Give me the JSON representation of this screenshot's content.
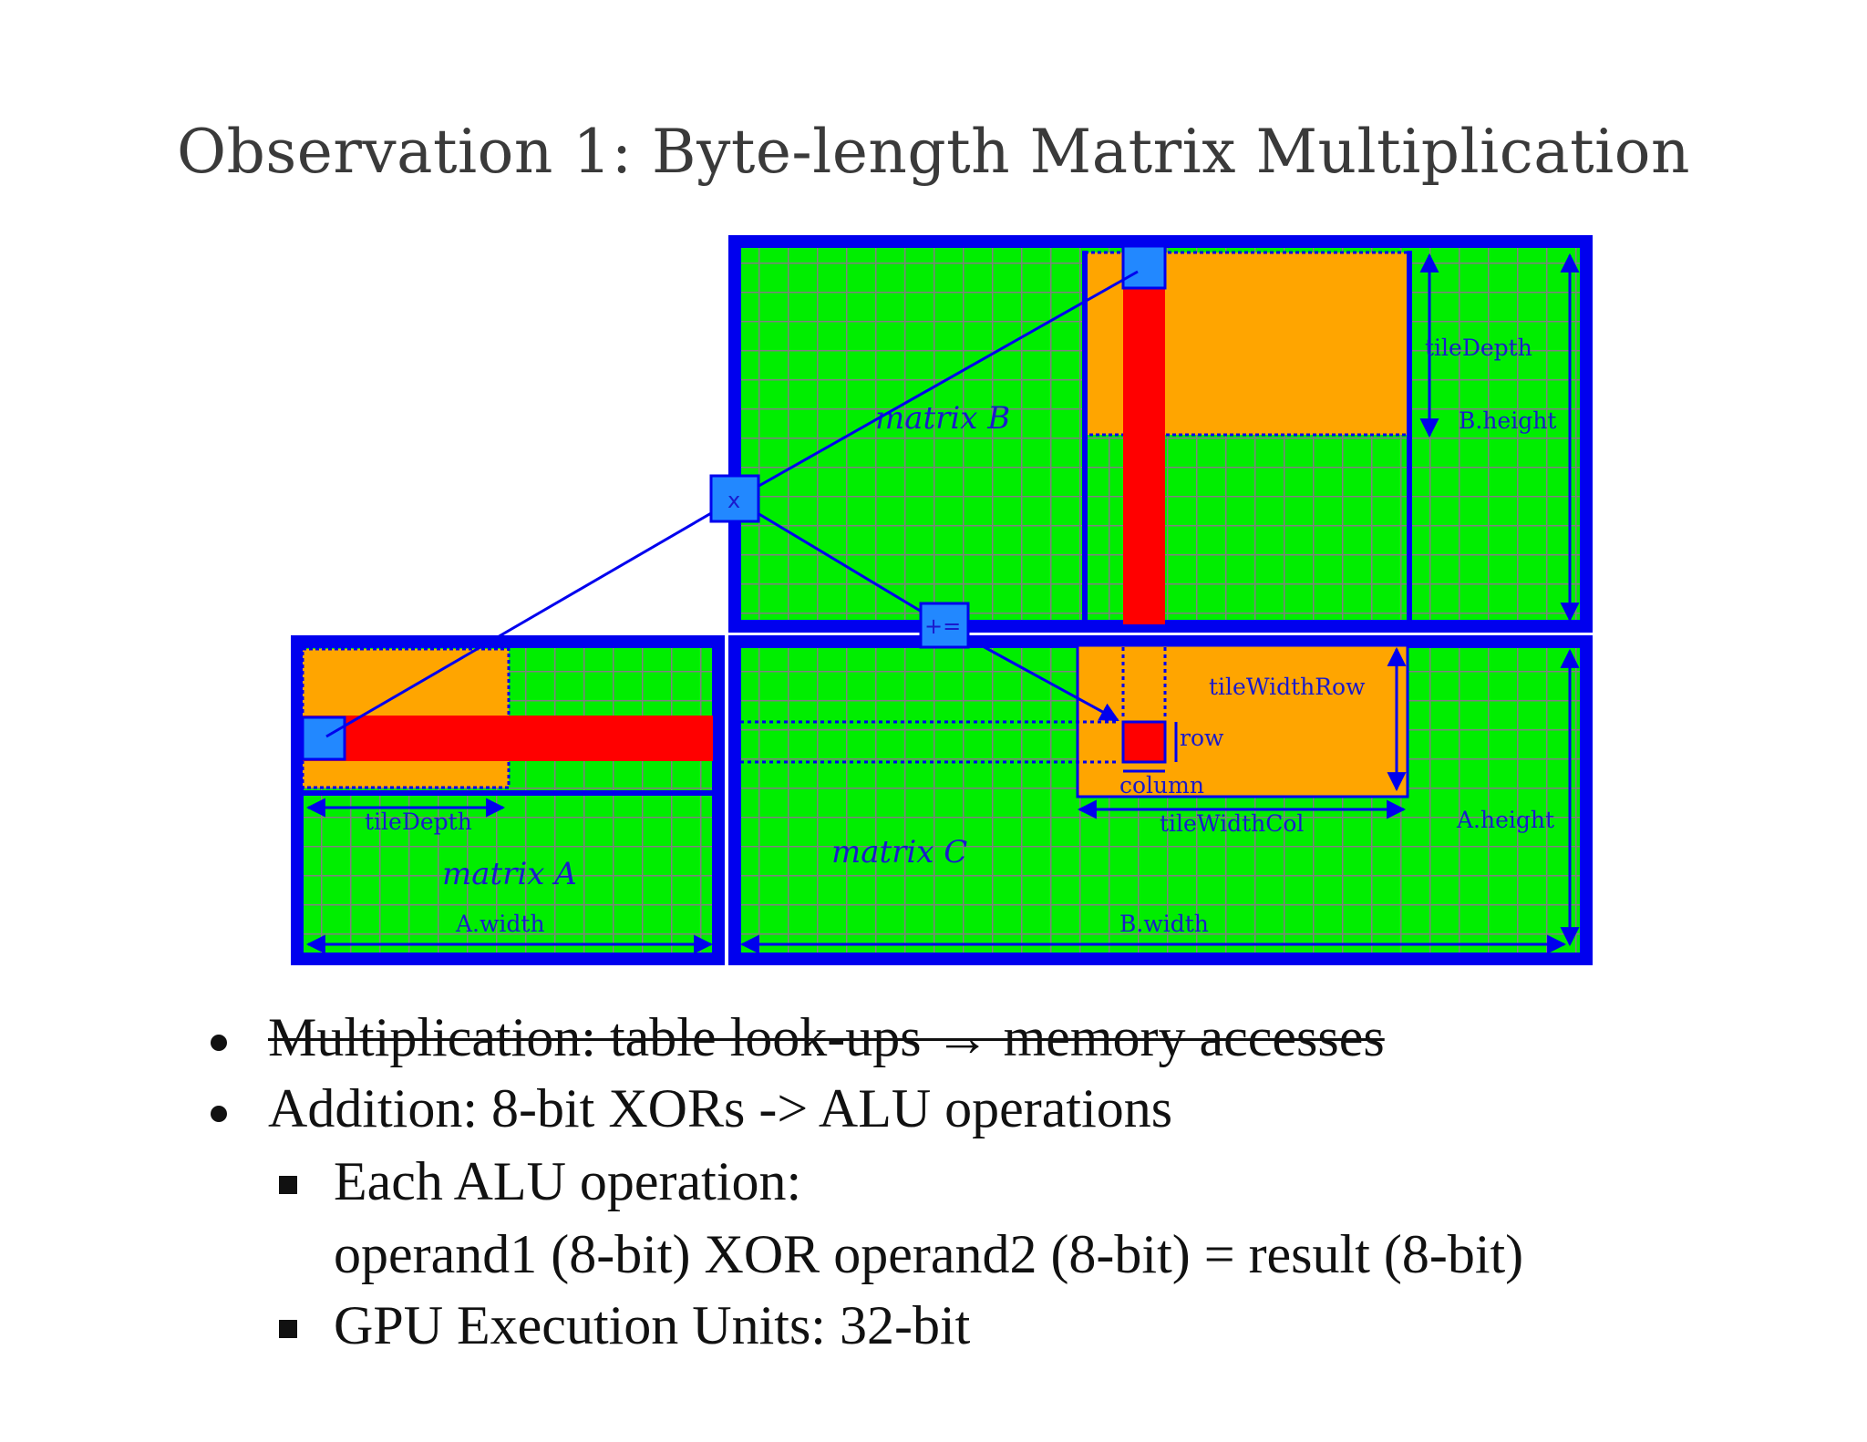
{
  "title": "Observation 1: Byte-length Matrix Multiplication",
  "diagram": {
    "matrix_a_label": "matrix A",
    "matrix_b_label": "matrix B",
    "matrix_c_label": "matrix C",
    "multiply_op": "x",
    "accumulate_op": "+=",
    "labels": {
      "tile_depth_b": "tileDepth",
      "b_height": "B.height",
      "tile_width_row": "tileWidthRow",
      "row": "row",
      "column": "column",
      "tile_depth_a": "tileDepth",
      "tile_width_col": "tileWidthCol",
      "a_height": "A.height",
      "a_width": "A.width",
      "b_width": "B.width"
    },
    "colors": {
      "matrix_border": "#0000ee",
      "matrix_fill": "#00ee00",
      "grid": "#808080",
      "tile": "#ffa500",
      "highlight": "#ff0000",
      "element_box": "#2288ff"
    }
  },
  "bullets": [
    {
      "text": "Multiplication: table look-ups → memory accesses",
      "struck": true
    },
    {
      "text": "Addition: 8-bit XORs -> ALU operations",
      "struck": false
    }
  ],
  "sub_bullets": [
    {
      "text": "Each ALU operation:",
      "continuation": "operand1 (8-bit) XOR operand2 (8-bit) = result (8-bit)"
    },
    {
      "text": "GPU Execution Units: 32-bit"
    }
  ]
}
